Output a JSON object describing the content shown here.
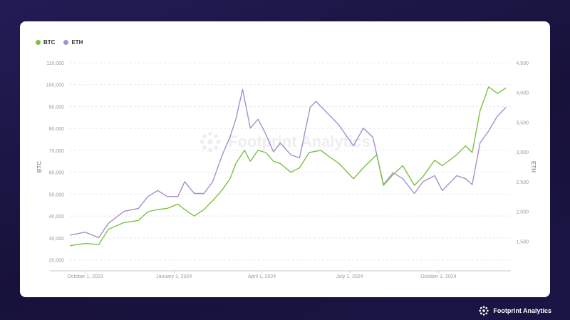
{
  "brand": {
    "name": "Footprint Analytics"
  },
  "colors": {
    "btc": "#7cc142",
    "eth": "#a58fcf",
    "grid": "#e8e8ee",
    "axis": "#9a9aa6",
    "card": "#ffffff",
    "background": "#1c1744"
  },
  "chart_data": {
    "type": "line",
    "legend": [
      "BTC",
      "ETH"
    ],
    "legend_position": "top-left",
    "xlabel": "",
    "ylabel_left": "BTC",
    "ylabel_right": "ETH",
    "x_ticks": [
      "October 1, 2023",
      "January 1, 2024",
      "April 1, 2024",
      "July 1, 2024",
      "October 1, 2024"
    ],
    "y_left_ticks": [
      "20,000",
      "30,000",
      "40,000",
      "50,000",
      "60,000",
      "70,000",
      "80,000",
      "90,000",
      "100,000",
      "110,000"
    ],
    "y_right_ticks": [
      "1,500",
      "2,000",
      "2,500",
      "3,000",
      "3,500",
      "4,000",
      "4,500"
    ],
    "ylim_left": [
      15000,
      110000
    ],
    "ylim_right": [
      1000,
      4500
    ],
    "xlim": [
      "2023-09-15",
      "2024-12-15"
    ],
    "grid": true,
    "series": [
      {
        "name": "BTC",
        "axis": "left",
        "x": [
          "2023-09-15",
          "2023-10-01",
          "2023-10-15",
          "2023-10-25",
          "2023-11-10",
          "2023-11-25",
          "2023-12-05",
          "2023-12-15",
          "2023-12-25",
          "2024-01-05",
          "2024-01-12",
          "2024-01-22",
          "2024-02-01",
          "2024-02-10",
          "2024-02-20",
          "2024-02-28",
          "2024-03-05",
          "2024-03-14",
          "2024-03-20",
          "2024-03-28",
          "2024-04-05",
          "2024-04-13",
          "2024-04-20",
          "2024-05-01",
          "2024-05-10",
          "2024-05-20",
          "2024-06-01",
          "2024-06-10",
          "2024-06-20",
          "2024-07-05",
          "2024-07-15",
          "2024-07-29",
          "2024-08-05",
          "2024-08-15",
          "2024-08-25",
          "2024-09-06",
          "2024-09-15",
          "2024-09-27",
          "2024-10-05",
          "2024-10-20",
          "2024-10-29",
          "2024-11-05",
          "2024-11-13",
          "2024-11-22",
          "2024-12-01",
          "2024-12-10"
        ],
        "values": [
          26500,
          27500,
          27000,
          34000,
          37000,
          38000,
          42000,
          43000,
          43500,
          45500,
          43000,
          40000,
          43000,
          47000,
          52000,
          57000,
          64000,
          70000,
          65000,
          70000,
          69000,
          65000,
          64000,
          60000,
          62000,
          69000,
          70000,
          67000,
          64000,
          57000,
          62000,
          68000,
          54000,
          59000,
          63000,
          54000,
          58000,
          65500,
          63000,
          68000,
          72000,
          69000,
          88000,
          99000,
          96000,
          98500
        ]
      },
      {
        "name": "ETH",
        "axis": "right",
        "x": [
          "2023-09-15",
          "2023-10-01",
          "2023-10-15",
          "2023-10-25",
          "2023-11-10",
          "2023-11-25",
          "2023-12-05",
          "2023-12-15",
          "2023-12-25",
          "2024-01-05",
          "2024-01-12",
          "2024-01-22",
          "2024-02-01",
          "2024-02-10",
          "2024-02-20",
          "2024-02-28",
          "2024-03-05",
          "2024-03-12",
          "2024-03-20",
          "2024-03-28",
          "2024-04-05",
          "2024-04-13",
          "2024-04-20",
          "2024-05-01",
          "2024-05-10",
          "2024-05-21",
          "2024-05-27",
          "2024-06-05",
          "2024-06-20",
          "2024-07-05",
          "2024-07-15",
          "2024-07-25",
          "2024-08-05",
          "2024-08-15",
          "2024-08-25",
          "2024-09-06",
          "2024-09-15",
          "2024-09-27",
          "2024-10-05",
          "2024-10-20",
          "2024-10-29",
          "2024-11-05",
          "2024-11-13",
          "2024-11-22",
          "2024-12-01",
          "2024-12-10"
        ],
        "values": [
          1600,
          1650,
          1560,
          1800,
          2000,
          2050,
          2250,
          2350,
          2250,
          2250,
          2500,
          2300,
          2300,
          2500,
          2950,
          3250,
          3550,
          4050,
          3400,
          3550,
          3300,
          3000,
          3150,
          2950,
          2900,
          3750,
          3850,
          3700,
          3450,
          3100,
          3400,
          3250,
          2450,
          2650,
          2550,
          2300,
          2500,
          2600,
          2350,
          2600,
          2550,
          2450,
          3150,
          3350,
          3600,
          3750
        ]
      }
    ]
  }
}
